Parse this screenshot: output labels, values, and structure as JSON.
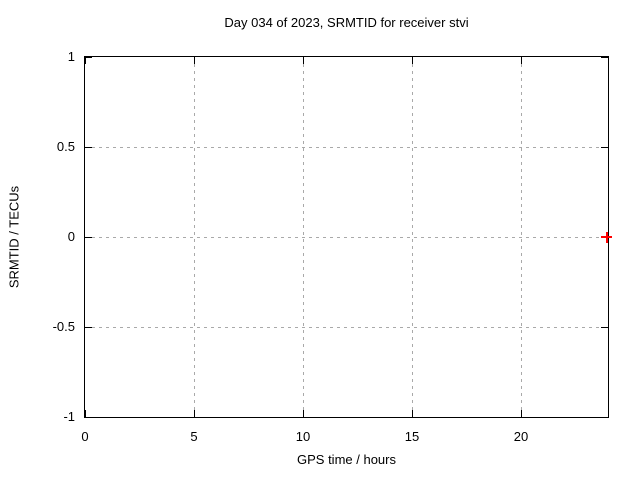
{
  "chart_data": {
    "type": "scatter",
    "title": "Day 034 of 2023, SRMTID for receiver stvi",
    "xlabel": "GPS time / hours",
    "ylabel": "SRMTID / TECUs",
    "xlim": [
      0,
      24
    ],
    "ylim": [
      -1,
      1
    ],
    "x_ticks": [
      0,
      5,
      10,
      15,
      20
    ],
    "y_ticks": [
      1,
      0.5,
      0,
      -0.5,
      -1
    ],
    "grid": "dotted",
    "legend_position": "none",
    "series": [
      {
        "name": "SRMTID",
        "marker": "plus",
        "color": "#ff0000",
        "points": [
          {
            "x": 23.95,
            "y": 0
          }
        ]
      }
    ]
  },
  "colors": {
    "background": "#ffffff",
    "axis": "#000000",
    "grid": "#a9a9a9",
    "text": "#000000",
    "marker": "#ff0000"
  }
}
